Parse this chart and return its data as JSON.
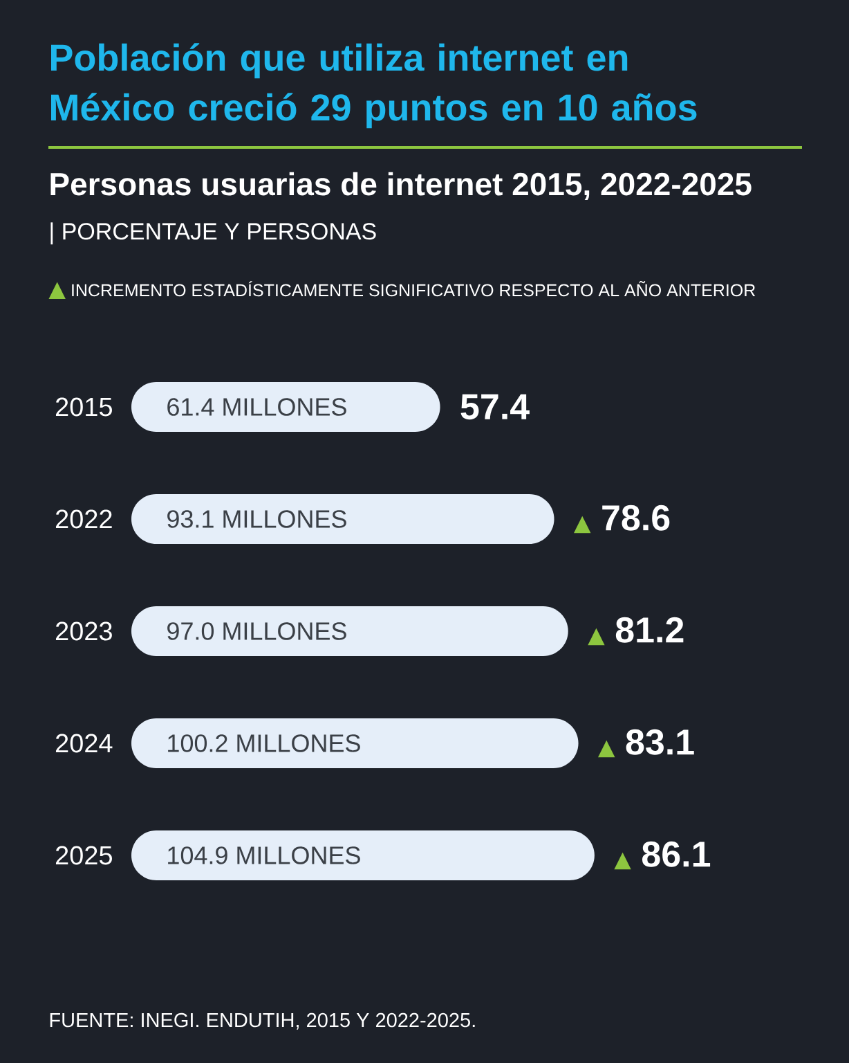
{
  "chart_data": {
    "type": "bar",
    "orientation": "horizontal",
    "title": "Población que utiliza internet en México creció 29 puntos en 10 años",
    "subtitle": "Personas usuarias de internet 2015, 2022-2025",
    "categories": [
      "2015",
      "2022",
      "2023",
      "2024",
      "2025"
    ],
    "values": [
      57.4,
      78.6,
      81.2,
      83.1,
      86.1
    ],
    "color": "#e5eef9",
    "value_labels": [
      "57.4",
      "▲ 78.6",
      "▲ 81.2",
      "▲ 83.1",
      "▲ 86.1"
    ],
    "tick_labels": "y",
    "annotations": [
      "| PORCENTAJE Y PERSONAS",
      "▲ INCREMENTO ESTADÍSTICAMENTE SIGNIFICATIVO RESPECTO AL AÑO ANTERIOR",
      "61.4 MILLONES",
      "93.1 MILLONES",
      "97.0 MILLONES",
      "100.2 MILLONES",
      "104.9 MILLONES",
      "FUENTE: INEGI. ENDUTIH, 2015 Y 2022-2025."
    ]
  }
}
